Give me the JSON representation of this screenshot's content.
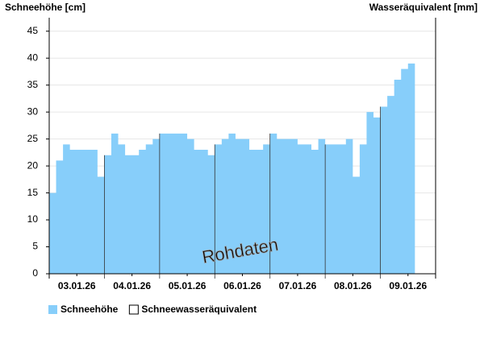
{
  "chart_data": {
    "type": "area",
    "y_axis_label": "Schneehöhe [cm]",
    "y2_axis_label": "Wasseräquivalent [mm]",
    "annotation": "Rohdaten",
    "categories": [
      null,
      null,
      null,
      null,
      "03.01.26",
      null,
      null,
      null,
      null,
      null,
      null,
      null,
      "04.01.26",
      null,
      null,
      null,
      null,
      null,
      null,
      null,
      "05.01.26",
      null,
      null,
      null,
      null,
      null,
      null,
      null,
      "06.01.26",
      null,
      null,
      null,
      null,
      null,
      null,
      null,
      "07.01.26",
      null,
      null,
      null,
      null,
      null,
      null,
      null,
      "08.01.26",
      null,
      null,
      null,
      null,
      null,
      null,
      null,
      "09.01.26",
      null,
      null,
      null
    ],
    "series": [
      {
        "name": "Schneehöhe",
        "color": "#87cefa",
        "values": [
          15,
          21,
          24,
          23,
          23,
          23,
          23,
          18,
          22,
          26,
          24,
          22,
          22,
          23,
          24,
          25,
          26,
          26,
          26,
          26,
          25,
          23,
          23,
          22,
          24,
          25,
          26,
          25,
          25,
          23,
          23,
          24,
          26,
          25,
          25,
          25,
          24,
          24,
          23,
          25,
          24,
          24,
          24,
          25,
          18,
          24,
          30,
          29,
          31,
          33,
          36,
          38,
          39,
          null,
          null,
          null
        ]
      },
      {
        "name": "Schneewasseräquivalent",
        "color": "#ffffff",
        "axis": "y2",
        "values": [
          null,
          null,
          null,
          null,
          null,
          null,
          null,
          null,
          null,
          null,
          null,
          null,
          null,
          null,
          null,
          null,
          null,
          null,
          null,
          null,
          null,
          null,
          null,
          null,
          null,
          null,
          null,
          null,
          null,
          null,
          null,
          null,
          null,
          null,
          null,
          null,
          null,
          null,
          null,
          null,
          null,
          null,
          null,
          null,
          null,
          null,
          null,
          null,
          null,
          null,
          null,
          null,
          null,
          null,
          null,
          null
        ]
      }
    ],
    "ylim": [
      0,
      47.5
    ],
    "yticks": [
      0,
      5,
      10,
      15,
      20,
      25,
      30,
      35,
      40,
      45
    ],
    "grid": true
  }
}
